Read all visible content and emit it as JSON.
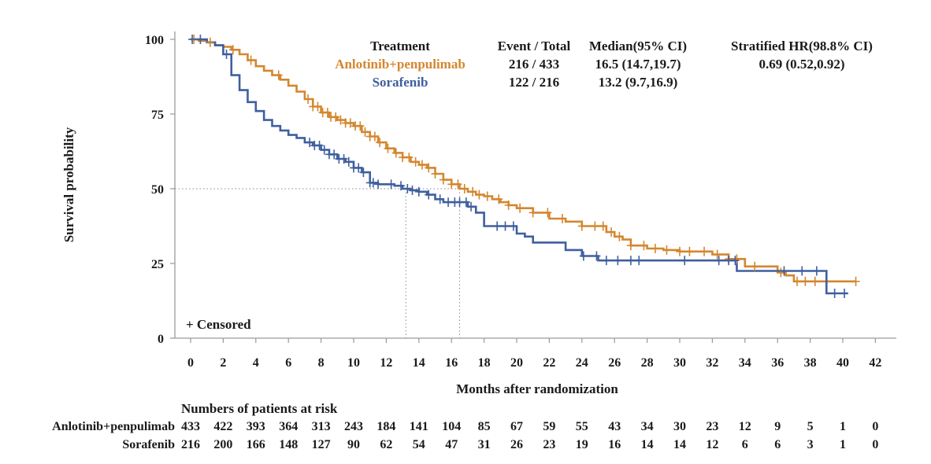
{
  "chart_data": {
    "type": "line",
    "xlabel": "Months after randomization",
    "ylabel": "Survival probability",
    "xlim": [
      0,
      42
    ],
    "ylim": [
      0,
      100
    ],
    "x_ticks": [
      0,
      2,
      4,
      6,
      8,
      10,
      12,
      14,
      16,
      18,
      20,
      22,
      24,
      26,
      28,
      30,
      32,
      34,
      36,
      38,
      40,
      42
    ],
    "y_ticks": [
      0,
      25,
      50,
      75,
      100
    ],
    "grid": false,
    "median_line_y": 50,
    "censored_note": "+ Censored",
    "legend_table": {
      "headers": [
        "Treatment",
        "Event / Total",
        "Median(95% CI)",
        "Stratified HR(98.8% CI)"
      ],
      "rows": [
        {
          "treatment": "Anlotinib+penpulimab",
          "event_total": "216 / 433",
          "median_ci": "16.5 (14.7,19.7)",
          "hr": "0.69 (0.52,0.92)",
          "color": "#d4862e"
        },
        {
          "treatment": "Sorafenib",
          "event_total": "122 / 216",
          "median_ci": "13.2 (9.7,16.9)",
          "hr": "",
          "color": "#3f5f9f"
        }
      ]
    },
    "series": [
      {
        "name": "Anlotinib+penpulimab",
        "color": "#d4862e",
        "median": 16.5,
        "x": [
          0,
          0.5,
          1.0,
          1.5,
          2.0,
          2.5,
          3.0,
          3.5,
          4.0,
          4.5,
          5.0,
          5.5,
          6.0,
          6.5,
          7.0,
          7.5,
          8.0,
          8.5,
          9.0,
          9.5,
          10.0,
          10.5,
          11.0,
          11.5,
          12.0,
          12.5,
          13.0,
          13.5,
          14.0,
          14.5,
          15.0,
          15.5,
          16.0,
          16.5,
          17.0,
          17.5,
          18.0,
          18.5,
          19.0,
          19.5,
          20.0,
          21.0,
          22.0,
          23.0,
          24.0,
          25.0,
          25.5,
          26.0,
          26.5,
          27.0,
          28.0,
          29.0,
          30.0,
          31.0,
          32.0,
          33.0,
          34.0,
          35.0,
          36.0,
          36.5,
          37.0,
          38.0,
          39.0,
          40.0,
          40.8
        ],
        "y": [
          100,
          99.5,
          99,
          98,
          97.5,
          96.5,
          95,
          93,
          91,
          89.5,
          88,
          86.5,
          84.5,
          82.5,
          80,
          77.5,
          75.5,
          74,
          73,
          72,
          71,
          69,
          67.5,
          65.5,
          63.5,
          62,
          60.5,
          59,
          58,
          57,
          55,
          53,
          51.5,
          50,
          49,
          48,
          47.5,
          46.5,
          45.5,
          44.5,
          43.5,
          42,
          40,
          39,
          37.5,
          37.5,
          35.5,
          34,
          33,
          31,
          30,
          29.5,
          29,
          29,
          28,
          26.5,
          24,
          24,
          22,
          21,
          19,
          19,
          19,
          19,
          19
        ]
      },
      {
        "name": "Sorafenib",
        "color": "#3f5f9f",
        "median": 13.2,
        "x": [
          0,
          0.5,
          1.0,
          1.5,
          2.0,
          2.5,
          3.0,
          3.5,
          4.0,
          4.5,
          5.0,
          5.5,
          6.0,
          6.5,
          7.0,
          7.5,
          8.0,
          8.5,
          9.0,
          9.5,
          10.0,
          10.5,
          11.0,
          11.5,
          12.0,
          12.5,
          13.0,
          13.5,
          14.0,
          14.5,
          15.0,
          15.5,
          16.0,
          16.5,
          17.0,
          17.5,
          18.0,
          19.0,
          20.0,
          20.5,
          21.0,
          22.0,
          23.0,
          24.0,
          25.0,
          26.0,
          28.0,
          30.0,
          32.0,
          33.0,
          33.5,
          35.0,
          37.0,
          38.5,
          39.0,
          40.3
        ],
        "y": [
          100,
          100,
          99,
          98,
          95,
          88,
          83,
          79,
          76,
          73,
          71,
          69.5,
          68,
          67,
          65.5,
          64.5,
          63,
          61.5,
          60,
          59,
          57,
          55.5,
          52,
          51.5,
          51.5,
          51,
          50,
          49.5,
          49,
          48,
          46.5,
          45.5,
          45.5,
          45.5,
          44,
          42,
          37.5,
          37.5,
          35,
          34,
          32,
          32,
          29.5,
          27.5,
          26,
          26,
          26,
          26,
          26,
          26,
          22.5,
          22.5,
          22.5,
          22.5,
          15,
          15
        ]
      }
    ],
    "censor_marks": [
      {
        "series": "Anlotinib+penpulimab",
        "x": [
          0.2,
          1.2,
          2.6,
          3.7,
          5.4,
          7.2,
          7.5,
          7.8,
          8.1,
          8.4,
          8.6,
          8.9,
          9.2,
          9.5,
          9.8,
          10.1,
          10.4,
          10.7,
          11.0,
          11.3,
          11.6,
          12.1,
          12.6,
          13.0,
          13.4,
          13.8,
          14.2,
          14.6,
          15.0,
          15.5,
          16.0,
          16.4,
          16.8,
          17.3,
          17.7,
          18.2,
          18.9,
          19.5,
          20.2,
          21.0,
          21.9,
          22.8,
          24.0,
          24.8,
          25.3,
          25.8,
          26.3,
          27.0,
          27.8,
          28.5,
          29.2,
          30.0,
          30.6,
          31.5,
          32.3,
          33.0,
          33.5,
          34.6,
          36.2,
          37.2,
          37.7,
          38.3,
          40.8
        ]
      },
      {
        "series": "Sorafenib",
        "x": [
          0.1,
          0.6,
          2.2,
          7.3,
          7.6,
          7.9,
          8.2,
          8.5,
          8.8,
          9.1,
          9.4,
          9.7,
          10.0,
          10.3,
          10.6,
          11.0,
          11.2,
          11.5,
          12.3,
          12.9,
          13.3,
          13.6,
          14.0,
          14.6,
          15.3,
          15.8,
          16.2,
          16.5,
          16.9,
          17.2,
          18.8,
          19.3,
          19.8,
          24.1,
          24.9,
          25.5,
          26.2,
          27.0,
          27.5,
          30.3,
          32.4,
          33.0,
          33.4,
          36.4,
          37.5,
          38.4,
          39.5,
          40.1
        ]
      }
    ],
    "risk_table": {
      "title": "Numbers of patients at risk",
      "times": [
        0,
        2,
        4,
        6,
        8,
        10,
        12,
        14,
        16,
        18,
        20,
        22,
        24,
        26,
        28,
        30,
        32,
        34,
        36,
        38,
        40,
        42
      ],
      "rows": [
        {
          "label": "Anlotinib+penpulimab",
          "values": [
            433,
            422,
            393,
            364,
            313,
            243,
            184,
            141,
            104,
            85,
            67,
            59,
            55,
            43,
            34,
            30,
            23,
            12,
            9,
            5,
            1,
            0
          ]
        },
        {
          "label": "Sorafenib",
          "values": [
            216,
            200,
            166,
            148,
            127,
            90,
            62,
            54,
            47,
            31,
            26,
            23,
            19,
            16,
            14,
            14,
            12,
            6,
            6,
            3,
            1,
            0
          ]
        }
      ]
    }
  }
}
